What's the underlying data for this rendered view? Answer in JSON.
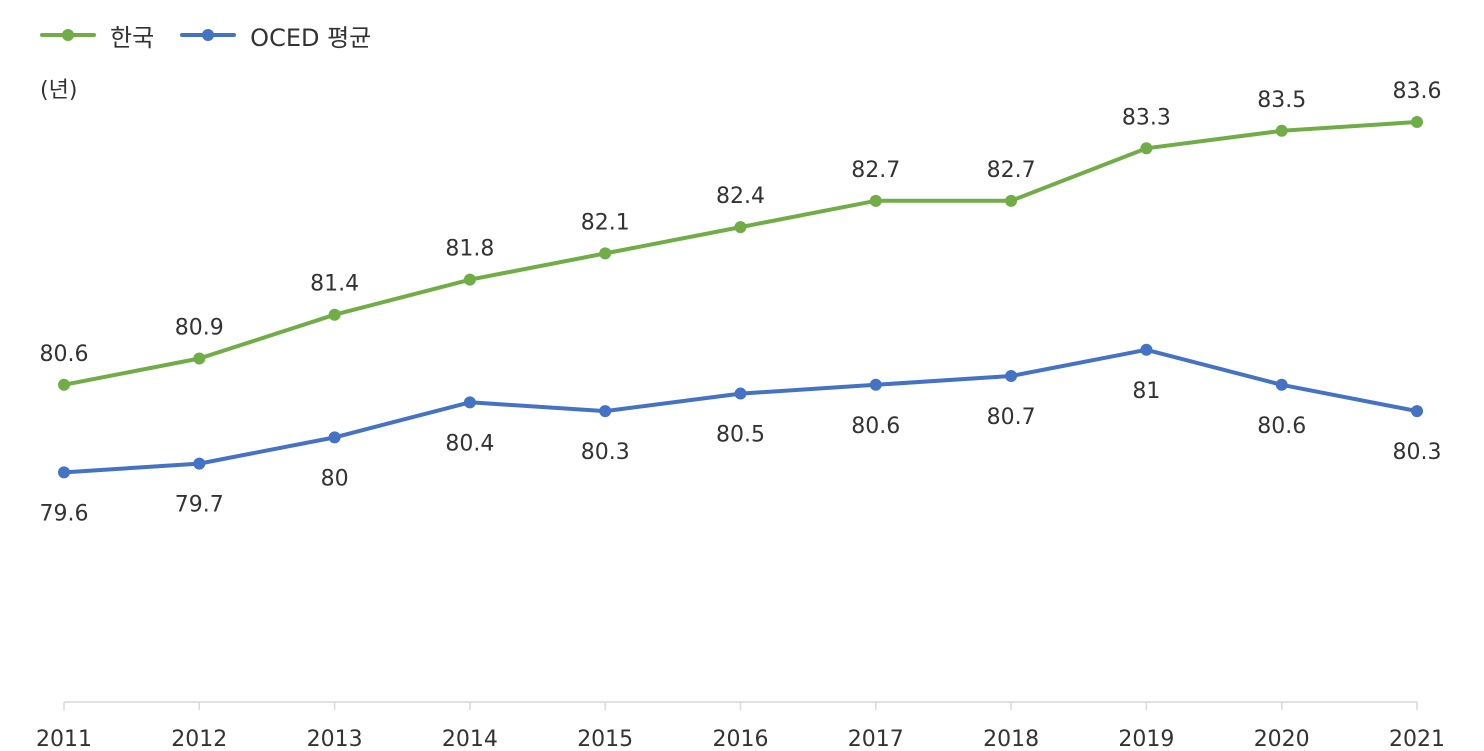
{
  "legend": [
    {
      "name": "한국",
      "color": "#70ad47"
    },
    {
      "name": "OCED 평균",
      "color": "#4472c4"
    }
  ],
  "unit_label": "(년)",
  "chart_data": {
    "type": "line",
    "x": [
      "2011",
      "2012",
      "2013",
      "2014",
      "2015",
      "2016",
      "2017",
      "2018",
      "2019",
      "2020",
      "2021"
    ],
    "series": [
      {
        "name": "한국",
        "color": "#70ad47",
        "values": [
          80.6,
          80.9,
          81.4,
          81.8,
          82.1,
          82.4,
          82.7,
          82.7,
          83.3,
          83.5,
          83.6
        ],
        "value_labels": [
          "80.6",
          "80.9",
          "81.4",
          "81.8",
          "82.1",
          "82.4",
          "82.7",
          "82.7",
          "83.3",
          "83.5",
          "83.6"
        ],
        "label_position": "above"
      },
      {
        "name": "OCED 평균",
        "color": "#4472c4",
        "values": [
          79.6,
          79.7,
          80.0,
          80.4,
          80.3,
          80.5,
          80.6,
          80.7,
          81.0,
          80.6,
          80.3
        ],
        "value_labels": [
          "79.6",
          "79.7",
          "80",
          "80.4",
          "80.3",
          "80.5",
          "80.6",
          "80.7",
          "81",
          "80.6",
          "80.3"
        ],
        "label_position": "below"
      }
    ],
    "ylabel": "(년)",
    "grid": false,
    "legend_position": "top-left",
    "axis_color": "#d9d9d9",
    "text_color": "#333333"
  }
}
